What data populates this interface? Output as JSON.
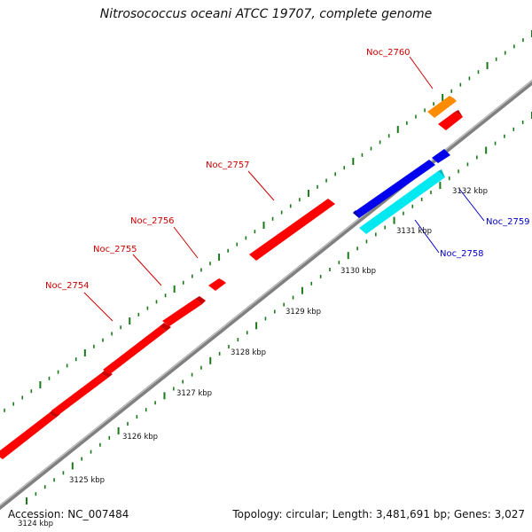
{
  "title": "Nitrosococcus oceani ATCC 19707, complete genome",
  "footer": {
    "accession": "Accession: NC_007484",
    "summary": "Topology: circular; Length: 3,481,691 bp; Genes: 3,027"
  },
  "colors": {
    "backbone": "#8a8a8a",
    "tick_mark": "#1a7a1a",
    "forward_label": "#cc0000",
    "reverse_label": "#0000cc",
    "forward_gene": "#ff0000",
    "reverse_gene": "#0000dd",
    "cyan_gene": "#00e5ee",
    "orange_gene": "#ff8c00"
  },
  "ticks": [
    "3124 kbp",
    "3125 kbp",
    "3126 kbp",
    "3127 kbp",
    "3128 kbp",
    "3129 kbp",
    "3130 kbp",
    "3131 kbp",
    "3132 kbp"
  ],
  "genes": [
    {
      "name": "Noc_2754",
      "strand": "forward",
      "color": "red"
    },
    {
      "name": "Noc_2755",
      "strand": "forward",
      "color": "red"
    },
    {
      "name": "Noc_2756",
      "strand": "forward",
      "color": "red"
    },
    {
      "name": "Noc_2757",
      "strand": "forward",
      "color": "red"
    },
    {
      "name": "Noc_2758",
      "strand": "reverse",
      "color": "cyan"
    },
    {
      "name": "Noc_2759",
      "strand": "reverse",
      "color": "blue"
    },
    {
      "name": "Noc_2760",
      "strand": "forward",
      "color": "orange"
    }
  ]
}
